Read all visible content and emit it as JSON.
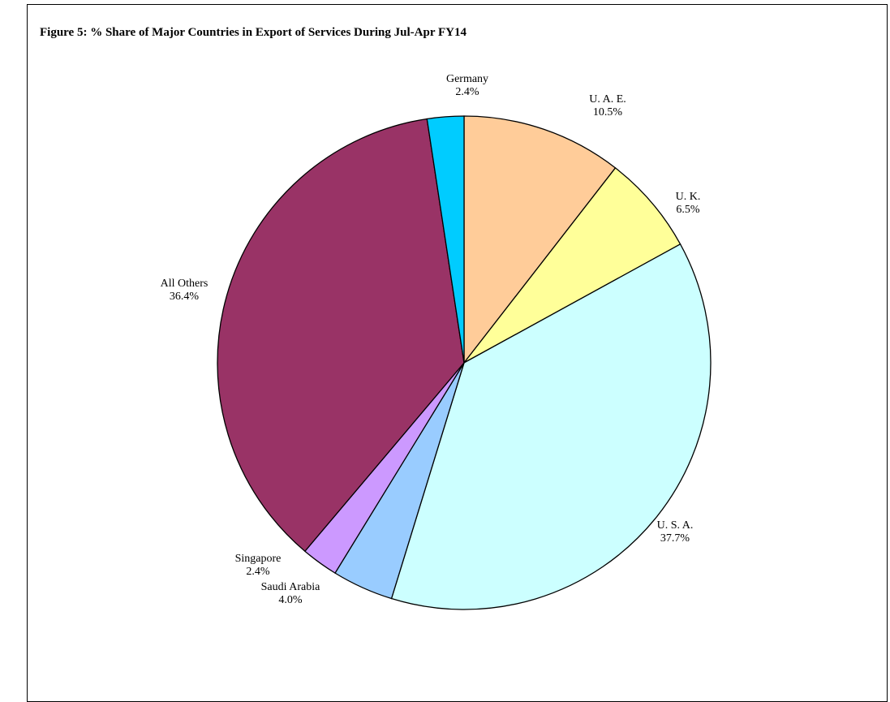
{
  "chart_data": {
    "type": "pie",
    "title": "Figure 5: % Share of Major Countries in Export of Services During Jul-Apr FY14",
    "start_angle_deg": 0,
    "direction": "clockwise",
    "slices": [
      {
        "label": "U. A. E.",
        "value": 10.5,
        "value_label": "10.5%",
        "color": "#FFCC99"
      },
      {
        "label": "U. K.",
        "value": 6.5,
        "value_label": "6.5%",
        "color": "#FFFF99"
      },
      {
        "label": "U. S. A.",
        "value": 37.7,
        "value_label": "37.7%",
        "color": "#CCFFFF"
      },
      {
        "label": "Saudi Arabia",
        "value": 4.0,
        "value_label": "4.0%",
        "color": "#99CCFF"
      },
      {
        "label": "Singapore",
        "value": 2.4,
        "value_label": "2.4%",
        "color": "#CC99FF"
      },
      {
        "label": "All Others",
        "value": 36.4,
        "value_label": "36.4%",
        "color": "#993366"
      },
      {
        "label": "Germany",
        "value": 2.4,
        "value_label": "2.4%",
        "color": "#00CCFF"
      }
    ],
    "legend": "none",
    "stroke_color": "#000000"
  }
}
